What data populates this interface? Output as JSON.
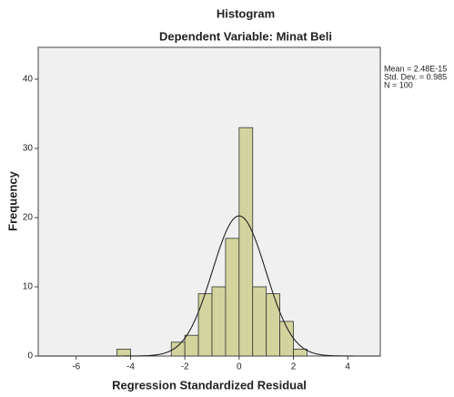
{
  "chart_data": {
    "type": "histogram",
    "title": "Histogram",
    "subtitle": "Dependent Variable: Minat Beli",
    "x_label": "Regression Standardized Residual",
    "y_label": "Frequency",
    "bins": [
      -4.5,
      -4,
      -3.5,
      -3,
      -2.5,
      -2,
      -1.5,
      -1,
      -0.5,
      0,
      0.5,
      1,
      1.5,
      2,
      2.5
    ],
    "values": [
      1,
      0,
      0,
      0,
      2,
      3,
      9,
      10,
      17,
      33,
      10,
      9,
      5,
      1
    ],
    "color": "#d3d39e",
    "xlim": [
      -7.4,
      5.2
    ],
    "xticks": [
      -6,
      -4,
      -2,
      0,
      2,
      4
    ],
    "ylim": [
      0,
      44.6
    ],
    "yticks": [
      0,
      10,
      20,
      30,
      40
    ],
    "annotations": [
      "Mean = 2.48E-15",
      "Std. Dev. = 0.985",
      "N = 100"
    ],
    "normal_curve": {
      "mean": 2.48e-15,
      "std_dev": 0.985,
      "n": 100
    }
  }
}
